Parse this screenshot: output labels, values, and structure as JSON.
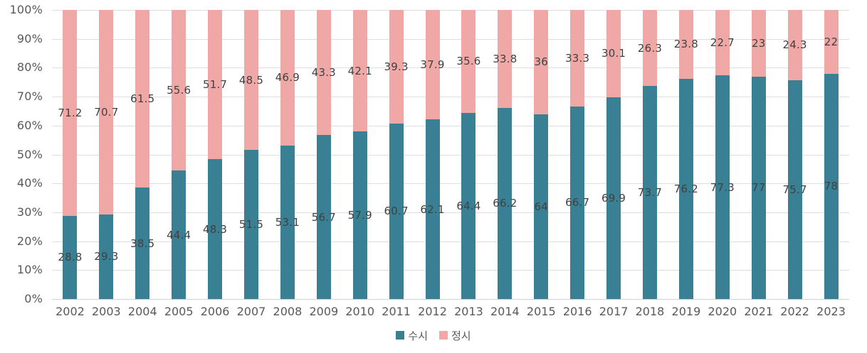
{
  "chart_data": {
    "type": "bar",
    "stacked": true,
    "percent_stacked": true,
    "unit": "%",
    "categories": [
      "2002",
      "2003",
      "2004",
      "2005",
      "2006",
      "2007",
      "2008",
      "2009",
      "2010",
      "2011",
      "2012",
      "2013",
      "2014",
      "2015",
      "2016",
      "2017",
      "2018",
      "2019",
      "2020",
      "2021",
      "2022",
      "2023"
    ],
    "series": [
      {
        "name": "수시",
        "color": "#3A8094",
        "values": [
          28.8,
          29.3,
          38.5,
          44.4,
          48.3,
          51.5,
          53.1,
          56.7,
          57.9,
          60.7,
          62.1,
          64.4,
          66.2,
          64,
          66.7,
          69.9,
          73.7,
          76.2,
          77.3,
          77,
          75.7,
          78
        ]
      },
      {
        "name": "정시",
        "color": "#F0A8A6",
        "values": [
          71.2,
          70.7,
          61.5,
          55.6,
          51.7,
          48.5,
          46.9,
          43.3,
          42.1,
          39.3,
          37.9,
          35.6,
          33.8,
          36,
          33.3,
          30.1,
          26.3,
          23.8,
          22.7,
          23,
          24.3,
          22
        ]
      }
    ],
    "title": "",
    "xlabel": "",
    "ylabel": "",
    "y_axis": {
      "min": 0,
      "max": 100,
      "tick_step": 10,
      "tick_labels": [
        "0%",
        "10%",
        "20%",
        "30%",
        "40%",
        "50%",
        "60%",
        "70%",
        "80%",
        "90%",
        "100%"
      ]
    },
    "grid": true,
    "data_labels": "center-of-segment",
    "legend_position": "bottom-center"
  },
  "colors": {
    "background": "#FFFFFF",
    "gridline": "#DEDEDE",
    "axis_line": "#D2D2D2",
    "axis_text": "#595959",
    "data_label_text": "#404040",
    "series_susi": "#3A8094",
    "series_jeongsi": "#F0A8A6"
  },
  "legend": {
    "items": [
      {
        "label": "수시",
        "color": "#3A8094"
      },
      {
        "label": "정시",
        "color": "#F0A8A6"
      }
    ]
  }
}
